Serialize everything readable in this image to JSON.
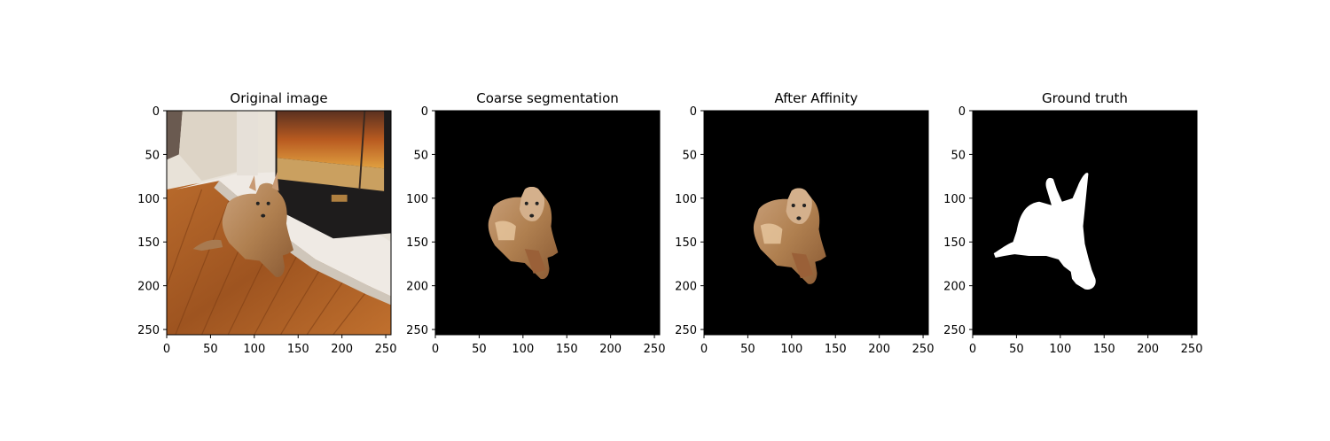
{
  "figure": {
    "panels": [
      {
        "title": "Original image",
        "kind": "photo"
      },
      {
        "title": "Coarse segmentation",
        "kind": "coarse"
      },
      {
        "title": "After Affinity",
        "kind": "affinity"
      },
      {
        "title": "Ground truth",
        "kind": "mask"
      }
    ],
    "axes": {
      "x_ticks": [
        "0",
        "50",
        "100",
        "150",
        "200",
        "250"
      ],
      "y_ticks": [
        "0",
        "50",
        "100",
        "150",
        "200",
        "250"
      ],
      "xlim": [
        0,
        256
      ],
      "ylim": [
        0,
        256
      ]
    },
    "colors": {
      "background": "#000000",
      "mask": "#ffffff",
      "floor": "#a65a22",
      "wall": "#e8e2d8",
      "fireplace": "#1e1c1c",
      "dog": "#b88a5e"
    }
  }
}
